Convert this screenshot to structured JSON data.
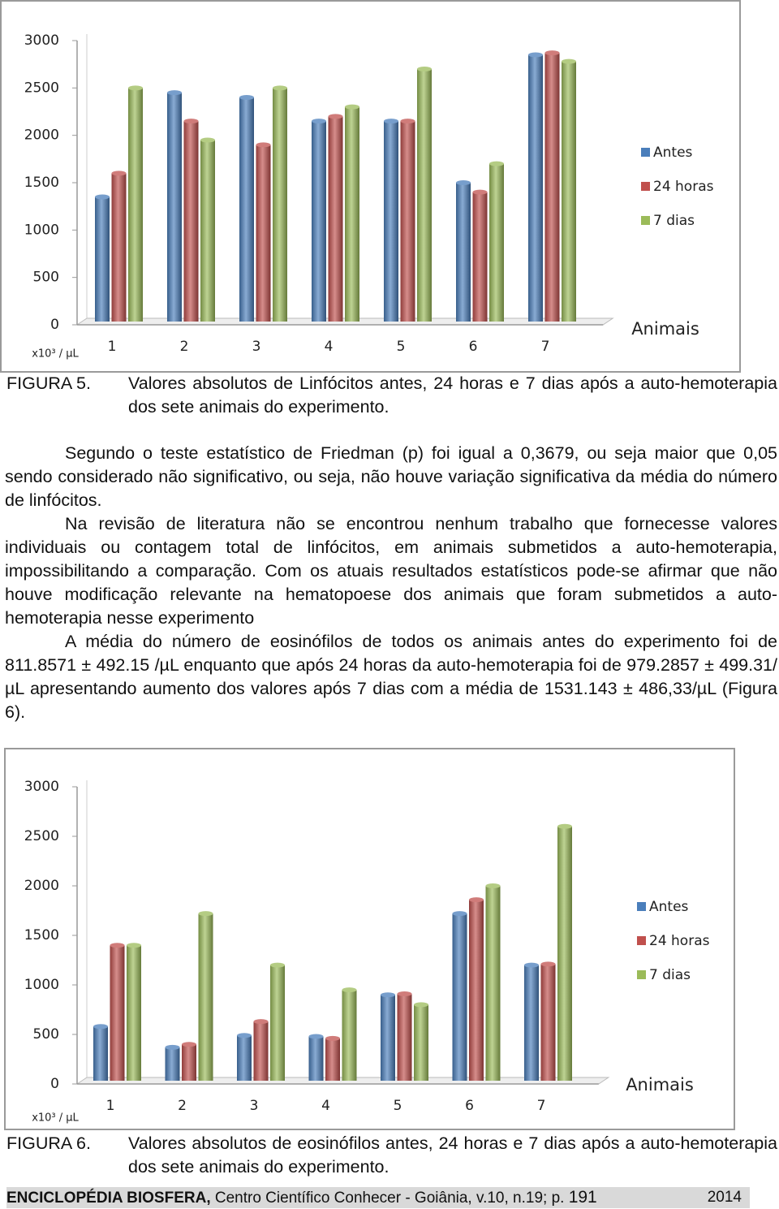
{
  "chart_data": [
    {
      "type": "bar",
      "y_label": "x10³ / µL",
      "x_label": "Animais",
      "categories": [
        "1",
        "2",
        "3",
        "4",
        "5",
        "6",
        "7"
      ],
      "series": [
        {
          "name": "Antes",
          "color": "#4a7ebb",
          "values": [
            1350,
            2450,
            2400,
            2150,
            2150,
            1500,
            2850
          ]
        },
        {
          "name": "24 horas",
          "color": "#c0504d",
          "values": [
            1600,
            2150,
            1900,
            2200,
            2150,
            1400,
            2870
          ]
        },
        {
          "name": "7 dias",
          "color": "#9bbb59",
          "values": [
            2500,
            1950,
            2500,
            2300,
            2700,
            1700,
            2780
          ]
        }
      ],
      "ylim": [
        0,
        3000
      ],
      "yticks": [
        0,
        500,
        1000,
        1500,
        2000,
        2500,
        3000
      ],
      "legend": "right"
    },
    {
      "type": "bar",
      "y_label": "x10³ / µL",
      "x_label": "Animais",
      "categories": [
        "1",
        "2",
        "3",
        "4",
        "5",
        "6",
        "7"
      ],
      "series": [
        {
          "name": "Antes",
          "color": "#4a7ebb",
          "values": [
            580,
            370,
            490,
            480,
            900,
            1720,
            1200
          ]
        },
        {
          "name": "24 horas",
          "color": "#c0504d",
          "values": [
            1400,
            400,
            630,
            460,
            910,
            1860,
            1210
          ]
        },
        {
          "name": "7 dias",
          "color": "#9bbb59",
          "values": [
            1400,
            1720,
            1200,
            950,
            800,
            2000,
            2600
          ]
        }
      ],
      "ylim": [
        0,
        3000
      ],
      "yticks": [
        0,
        500,
        1000,
        1500,
        2000,
        2500,
        3000
      ],
      "legend": "right"
    }
  ],
  "document": {
    "figure5": {
      "label": "FIGURA 5.",
      "text": "Valores absolutos de Linfócitos antes, 24 horas e 7 dias após a auto-hemoterapia dos sete animais do experimento."
    },
    "paragraphs": [
      "Segundo o teste estatístico de Friedman (p) foi igual a 0,3679, ou seja maior que 0,05 sendo considerado não significativo, ou seja, não houve variação significativa da média do número de linfócitos.",
      "Na revisão de literatura não se encontrou nenhum trabalho que fornecesse valores individuais ou contagem total de linfócitos, em animais submetidos a auto-hemoterapia, impossibilitando a comparação. Com os atuais resultados estatísticos pode-se afirmar que não houve modificação relevante na hematopoese dos animais que foram submetidos a auto-hemoterapia nesse experimento",
      "A média do número de eosinófilos de todos os animais antes do experimento foi de 811.8571 ± 492.15 /µL enquanto que após 24 horas da auto-hemoterapia foi de 979.2857 ± 499.31/µL apresentando aumento dos valores após 7 dias com a média de 1531.143 ± 486,33/µL (Figura 6)."
    ],
    "figure6": {
      "label": "FIGURA 6.",
      "text": "Valores absolutos de eosinófilos antes, 24 horas e 7 dias após a auto-hemoterapia dos sete animais do experimento."
    },
    "footer": {
      "journal": "ENCICLOPÉDIA BIOSFERA,",
      "details": "Centro Científico Conhecer - Goiânia, v.10, n.19; p.",
      "page": "191",
      "year": "2014"
    }
  }
}
